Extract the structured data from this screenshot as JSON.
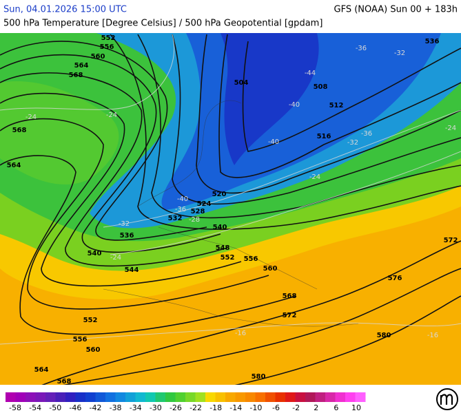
{
  "header": {
    "datetime": "Sun, 04.01.2026 15:00 UTC",
    "model": "GFS (NOAA) Sun 00 + 183h",
    "subtitle": "500 hPa Temperature [Degree Celsius] / 500 hPa Geopotential [gpdam]"
  },
  "geopotential_labels": [
    552,
    556,
    560,
    564,
    568,
    568,
    564,
    504,
    508,
    512,
    516,
    520,
    524,
    528,
    532,
    536,
    540,
    540,
    544,
    548,
    552,
    556,
    560,
    568,
    572,
    576,
    572,
    580,
    580,
    552,
    556,
    560,
    564,
    568,
    536
  ],
  "temperature_labels": [
    -36,
    -32,
    -44,
    -40,
    -40,
    -36,
    -32,
    -24,
    -24,
    -40,
    -36,
    -32,
    -28,
    -24,
    -24,
    -16,
    -16,
    -24
  ],
  "colorbar": {
    "labels": [
      -58,
      -54,
      -50,
      -46,
      -42,
      -38,
      -34,
      -30,
      -26,
      -22,
      -18,
      -14,
      -10,
      -6,
      -2,
      2,
      6,
      10
    ],
    "colors": [
      "#b000b0",
      "#a000b8",
      "#8c10b8",
      "#7a18b8",
      "#6420b8",
      "#4a20b8",
      "#3020c0",
      "#1830c8",
      "#1040d0",
      "#1058d8",
      "#1070e0",
      "#1088e0",
      "#10a0d8",
      "#10b8d0",
      "#10c8b0",
      "#20c870",
      "#30c840",
      "#50d030",
      "#78d828",
      "#a0e020",
      "#f8d800",
      "#f8c000",
      "#f8a800",
      "#f89800",
      "#f88800",
      "#f87000",
      "#f05000",
      "#e83000",
      "#e01818",
      "#c81040",
      "#b01858",
      "#c02080",
      "#d828a8",
      "#f030d0",
      "#ff40f0",
      "#ff60ff"
    ]
  }
}
